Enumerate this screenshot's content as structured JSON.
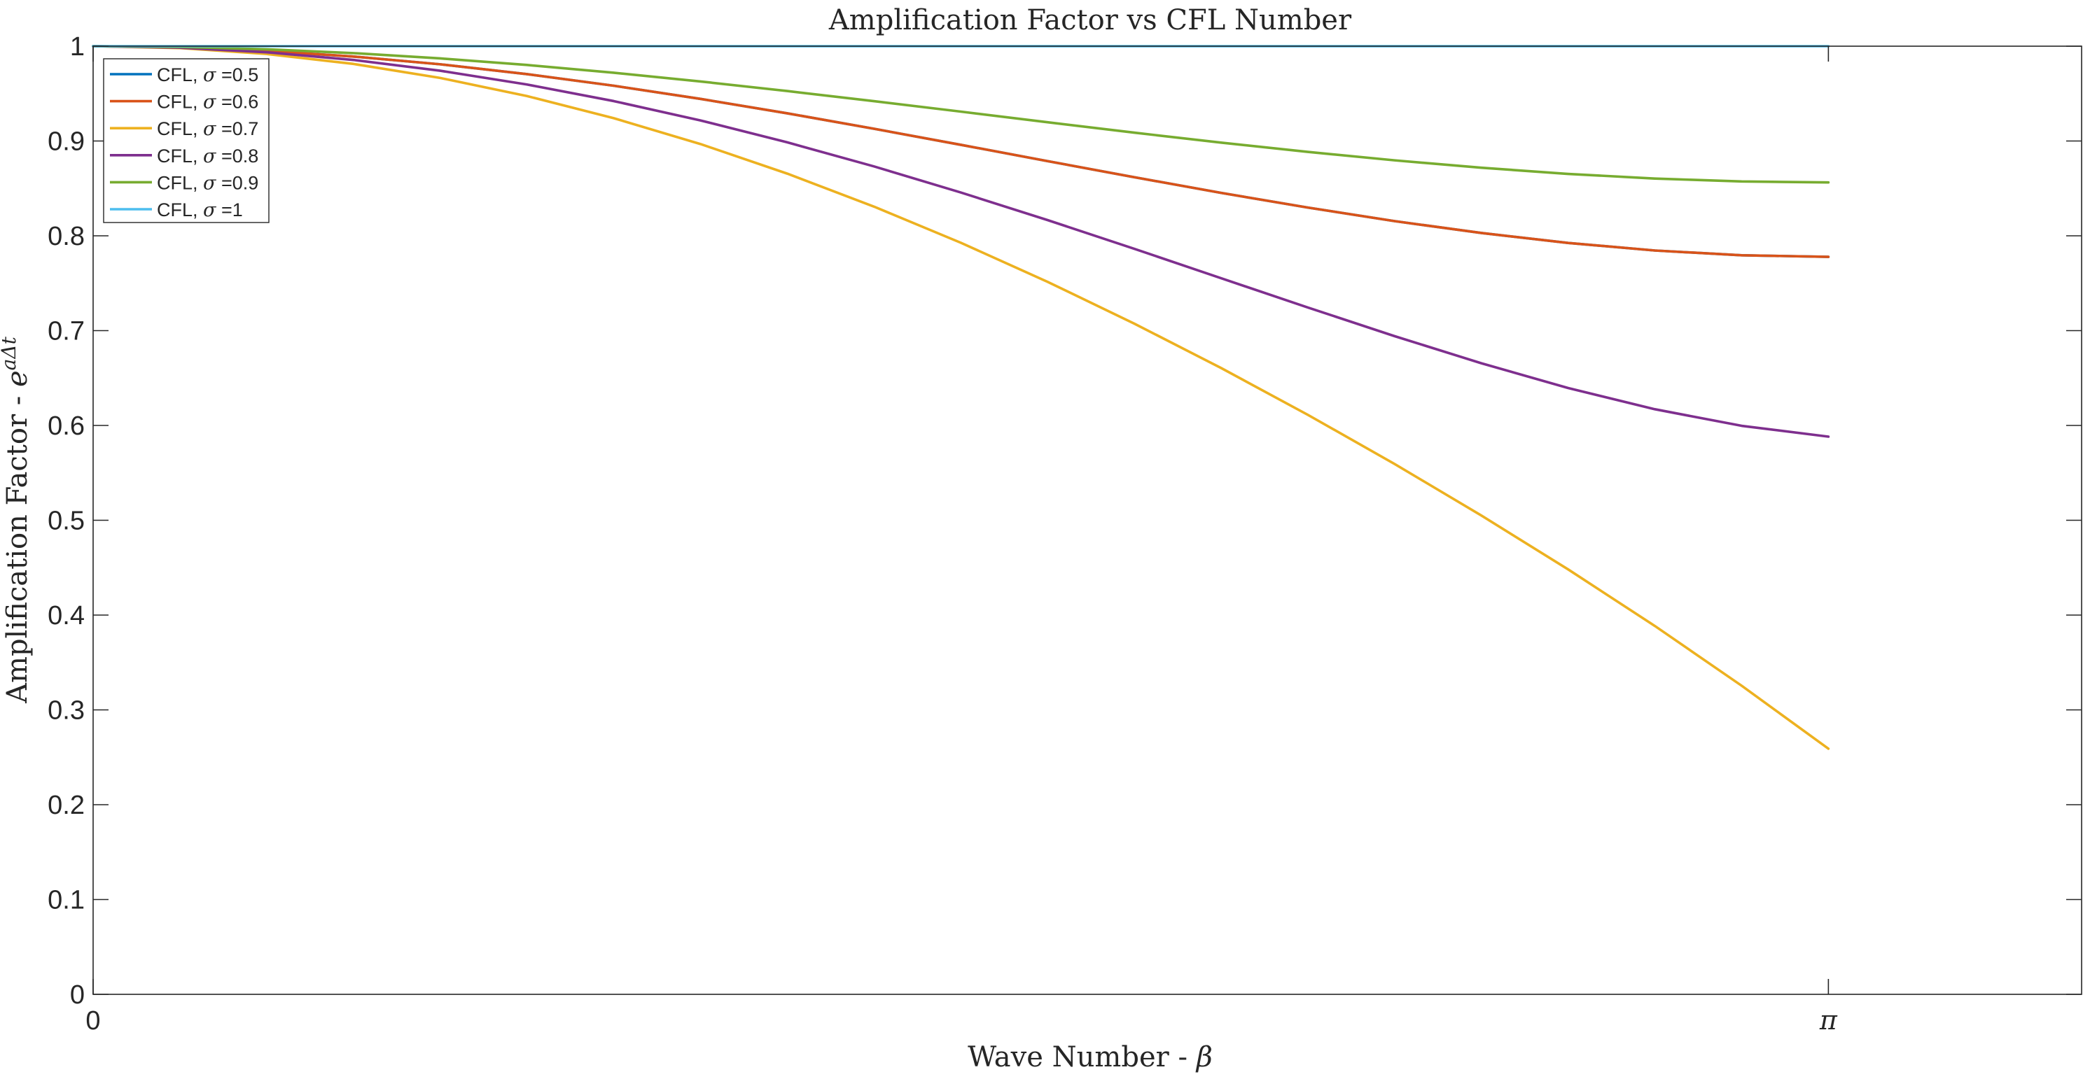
{
  "chart_data": {
    "type": "line",
    "title": "Amplification Factor vs CFL Number",
    "xlabel_text": "Wave Number - ",
    "xlabel_symbol": "β",
    "ylabel_text": "Amplification Factor - ",
    "ylabel_base": "e",
    "ylabel_exp": "aΔt",
    "x_unit": "radians",
    "xlim": [
      0,
      3.6
    ],
    "ylim": [
      0,
      1
    ],
    "xticks": [
      {
        "value": 0,
        "label": "0"
      },
      {
        "value": 3.14159,
        "label": "π"
      }
    ],
    "yticks": [
      {
        "value": 0,
        "label": "0"
      },
      {
        "value": 0.1,
        "label": "0.1"
      },
      {
        "value": 0.2,
        "label": "0.2"
      },
      {
        "value": 0.3,
        "label": "0.3"
      },
      {
        "value": 0.4,
        "label": "0.4"
      },
      {
        "value": 0.5,
        "label": "0.5"
      },
      {
        "value": 0.6,
        "label": "0.6"
      },
      {
        "value": 0.7,
        "label": "0.7"
      },
      {
        "value": 0.8,
        "label": "0.8"
      },
      {
        "value": 0.9,
        "label": "0.9"
      },
      {
        "value": 1,
        "label": "1"
      }
    ],
    "grid": false,
    "legend_position": "top-left",
    "x": [
      0,
      0.15708,
      0.31416,
      0.47124,
      0.62832,
      0.7854,
      0.94248,
      1.09956,
      1.25664,
      1.41372,
      1.5708,
      1.72788,
      1.88496,
      2.04204,
      2.19911,
      2.35619,
      2.51327,
      2.67035,
      2.82743,
      2.98451,
      3.14159
    ],
    "series": [
      {
        "name_prefix": "CFL, ",
        "name_symbol": "σ",
        "name_suffix": " =0.5",
        "color": "#0072BD",
        "values": [
          1,
          0.9988,
          0.9951,
          0.9891,
          0.9809,
          0.9705,
          0.9583,
          0.9444,
          0.9292,
          0.9129,
          0.896,
          0.8788,
          0.8618,
          0.8453,
          0.8298,
          0.8155,
          0.803,
          0.7925,
          0.7845,
          0.7795,
          0.7778
        ]
      },
      {
        "name_prefix": "CFL, ",
        "name_symbol": "σ",
        "name_suffix": " =0.6",
        "color": "#D95319",
        "values": [
          1,
          0.9988,
          0.9951,
          0.9891,
          0.9809,
          0.9705,
          0.9583,
          0.9444,
          0.9292,
          0.9129,
          0.896,
          0.8788,
          0.8618,
          0.8453,
          0.8298,
          0.8155,
          0.803,
          0.7925,
          0.7845,
          0.7795,
          0.7778
        ]
      },
      {
        "name_prefix": "CFL, ",
        "name_symbol": "σ",
        "name_suffix": " =0.7",
        "color": "#EDB120",
        "values": [
          1,
          0.998,
          0.9918,
          0.9813,
          0.9665,
          0.9474,
          0.9241,
          0.8968,
          0.8656,
          0.8308,
          0.7927,
          0.7515,
          0.7074,
          0.6606,
          0.6112,
          0.5594,
          0.505,
          0.4482,
          0.3885,
          0.3255,
          0.2591
        ]
      },
      {
        "name_prefix": "CFL, ",
        "name_symbol": "σ",
        "name_suffix": " =0.8",
        "color": "#7E2F8E",
        "values": [
          1,
          0.9984,
          0.9936,
          0.9855,
          0.9741,
          0.9596,
          0.9421,
          0.9217,
          0.8986,
          0.8732,
          0.8457,
          0.8166,
          0.7863,
          0.7553,
          0.7244,
          0.6942,
          0.6656,
          0.6395,
          0.6171,
          0.5996,
          0.5882
        ]
      },
      {
        "name_prefix": "CFL, ",
        "name_symbol": "σ",
        "name_suffix": " =0.9",
        "color": "#77AC30",
        "values": [
          1,
          0.9992,
          0.9967,
          0.9927,
          0.9871,
          0.9802,
          0.972,
          0.9628,
          0.9527,
          0.942,
          0.931,
          0.9198,
          0.9088,
          0.8983,
          0.8885,
          0.8796,
          0.8718,
          0.8653,
          0.8604,
          0.8573,
          0.8563
        ]
      },
      {
        "name_prefix": "CFL, ",
        "name_symbol": "σ",
        "name_suffix": " =1",
        "color": "#4DBEEE",
        "values": [
          1,
          1,
          1,
          1,
          1,
          1,
          1,
          1,
          1,
          1,
          1,
          1,
          1,
          1,
          1,
          1,
          1,
          1,
          1,
          1,
          1
        ]
      }
    ]
  }
}
